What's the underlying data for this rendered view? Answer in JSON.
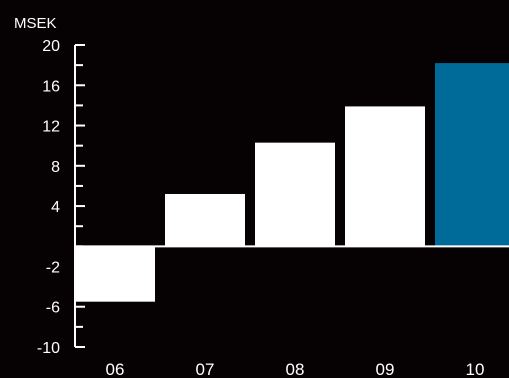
{
  "chart_data": {
    "type": "bar",
    "unit_label": "MSEK",
    "categories": [
      "06",
      "07",
      "08",
      "09",
      "10"
    ],
    "values": [
      -5.5,
      5.2,
      10.3,
      13.9,
      18.2
    ],
    "ylim": [
      -10,
      20
    ],
    "yticks": [
      -10,
      -6,
      -2,
      4,
      8,
      12,
      16,
      20
    ],
    "ytick_labels": [
      "-10",
      "-6",
      "-2",
      "4",
      "8",
      "12",
      "16",
      "20"
    ],
    "colors": {
      "background": "#060102",
      "bar_default": "#ffffff",
      "bar_highlight": "#006b99",
      "axis": "#ffffff"
    },
    "highlight_index": 4
  }
}
